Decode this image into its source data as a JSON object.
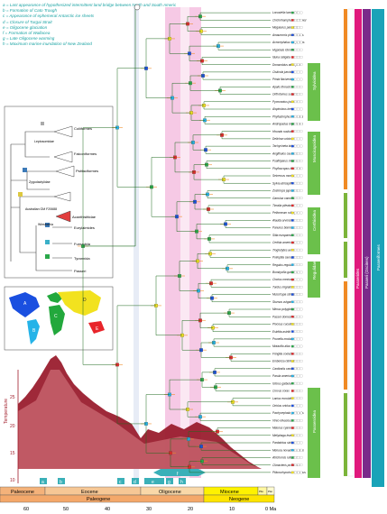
{
  "legend": [
    "a = Last appearance of hypothesized intermittent land bridge between North and South America",
    "b = Formation of Cato Trough",
    "c = Appearance of ephemeral Antarctic ice sheets",
    "d = Closure of Turgai Strait",
    "e = Oligocene glaciation",
    "f = Formation of Wallacea",
    "g = Late Oligocene warming",
    "h = Maximum marine inundation of New Zealand"
  ],
  "inset_tree": {
    "clades": [
      "Coliiformes",
      "Cariamiformes",
      "Falconiformes",
      "Psittaciformes",
      "Acanthisittidae",
      "Eurylaimides",
      "Furnariida",
      "Tyrannida",
      "Passeri"
    ],
    "nodes": [
      "Leptosomidae",
      "Halcyoniformidae",
      "Zygodactylidae",
      "Australian GM F20688",
      "Wieslochia"
    ]
  },
  "map_labels": [
    "A",
    "B",
    "C",
    "D",
    "E"
  ],
  "temperature_axis": {
    "label": "Temperature",
    "ticks": [
      "25",
      "20",
      "15",
      "10"
    ]
  },
  "event_markers": [
    "a",
    "b",
    "c",
    "d",
    "e",
    "f",
    "g",
    "h"
  ],
  "time_axis": {
    "epochs": [
      "Paleocene",
      "Eocene",
      "Oligocene",
      "Miocene",
      "Plio",
      "Plei"
    ],
    "periods": [
      "Paleogene",
      "Neogene"
    ],
    "ticks": [
      "60",
      "50",
      "40",
      "30",
      "20",
      "10",
      "0 Ma"
    ]
  },
  "side_labels": {
    "groups": [
      "Sylvioidea",
      "Muscicapoidea",
      "Certhioidea",
      "Regulidae",
      "Passeroidea",
      "Corvides",
      "Meliphagoidea",
      "Malaruridae",
      "Menuroidea"
    ],
    "bands": [
      "Passerides",
      "Passeri (Oscines)",
      "Passeriformes"
    ]
  },
  "taxa": [
    "Locustella lanceolata",
    "Cinclorhamphus mathewsi",
    "Megalurus palustris",
    "Amaurornis phoenicurus",
    "Acrocephalus scirpaceus",
    "Hippolais icterina",
    "Iduna caligata",
    "Donacobius atricapilla",
    "Cisticola juncidis",
    "Prinia flaviventris",
    "Apalis thoracica",
    "Orthotomus sutorius",
    "Pycnonotus jocosus",
    "Alophoixus bres",
    "Phyllastrephus terrestris",
    "Andropadus importunus",
    "Hirundo rustica",
    "Delichon urbicum",
    "Tachycineta bicolor",
    "Aegithalos caudatus",
    "Psaltriparus minimus",
    "Phylloscopus trochilus",
    "Seicercus montis",
    "Sylvia atricapilla",
    "Zosterops japonicus",
    "Garrulax canorus",
    "Timalia pileata",
    "Pellorneum ruficeps",
    "Alauda arvensis",
    "Panurus biarmicus",
    "Sitta europaea",
    "Certhia americana",
    "Troglodytes aedon",
    "Polioptila caerulea",
    "Regulus regulus",
    "Bombycilla garrulus",
    "Cinclus mexicanus",
    "Turdus migratorius",
    "Muscicapa striata",
    "Sturnus vulgaris",
    "Mimus polyglottos",
    "Passer domesticus",
    "Ploceus cucullatus",
    "Estrilda astrild",
    "Prunella modularis",
    "Motacilla alba",
    "Fringilla coelebs",
    "Emberiza citrinella",
    "Cardinalis cardinalis",
    "Parula americana",
    "Icterus galbula",
    "Corvus corax",
    "Lanius excubitor",
    "Oriolus oriolus",
    "Pachycephala pectoralis",
    "Vireo olivaceus",
    "Malurus cyaneus",
    "Meliphaga lewinii",
    "Pardalotus striatus",
    "Menura novaehollandiae",
    "Atrichornis rufescens",
    "Climacteris picumnus",
    "Ptilonorhynchus violaceus"
  ]
}
